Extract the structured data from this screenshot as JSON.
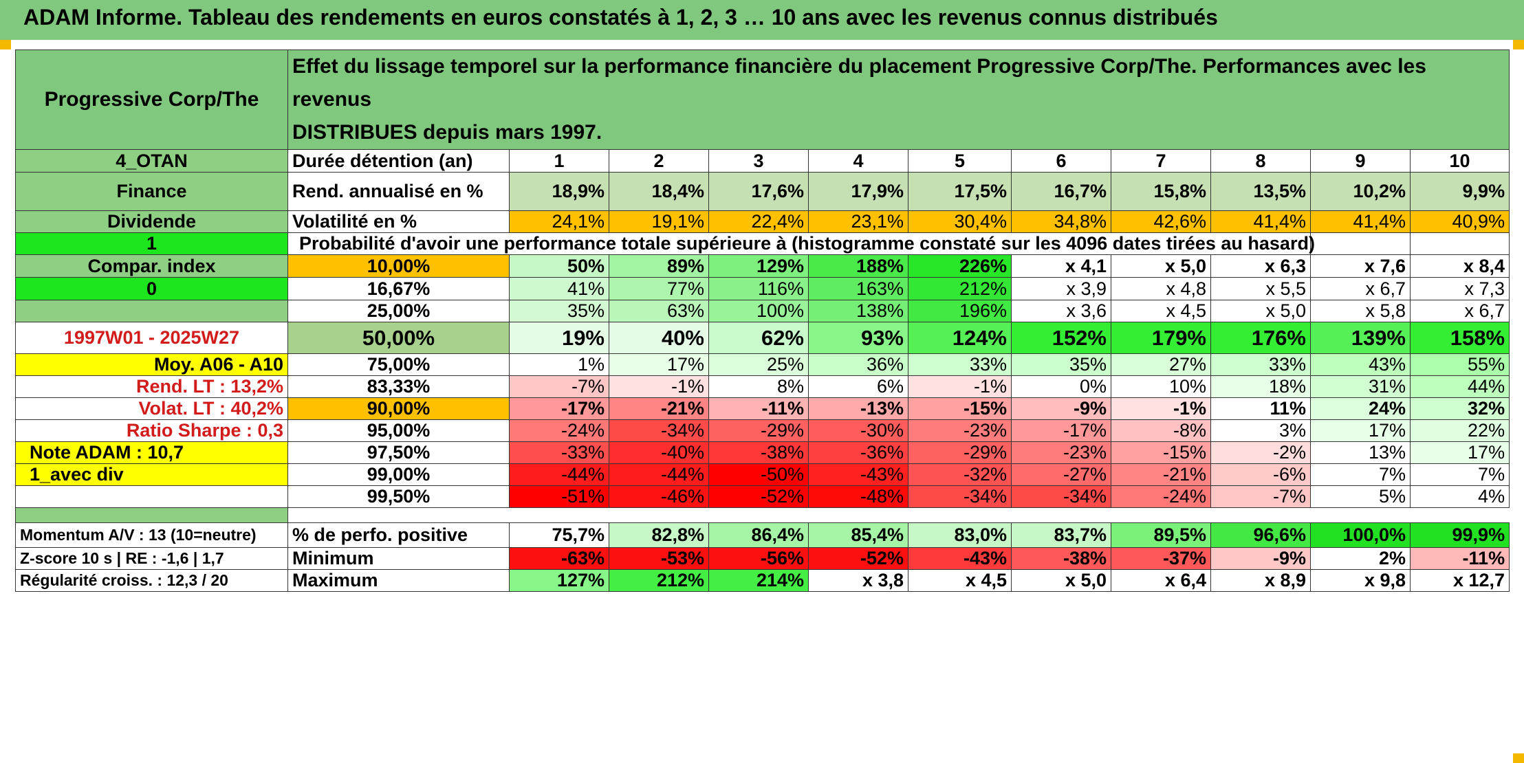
{
  "title": "ADAM Informe. Tableau des rendements en euros constatés à 1, 2, 3 … 10 ans avec les revenus connus distribués",
  "asset_name": "Progressive Corp/The",
  "description_line1": "Effet du lissage temporel sur la performance financière du placement Progressive Corp/The. Performances avec les revenus",
  "description_line2": "DISTRIBUES depuis mars 1997.",
  "left_panel": {
    "code": "4_OTAN",
    "sector": "Finance",
    "dividend": "Dividende",
    "one": "1",
    "compar_index": "Compar. index",
    "zero": "0",
    "period": "1997W01 - 2025W27",
    "moy": "Moy. A06 - A10",
    "rend_lt": "Rend. LT :   13,2%",
    "volat_lt": "Volat. LT :   40,2%",
    "sharpe": "Ratio Sharpe :    0,3",
    "note": "Note ADAM : 10,7",
    "avec_div": "1_avec div",
    "momentum": "Momentum A/V : 13 (10=neutre)",
    "zscore": "Z-score 10 s | RE : -1,6 | 1,7",
    "regularite": "Régularité croiss. : 12,3 / 20"
  },
  "labels": {
    "duree": "Durée détention (an)",
    "rend": "Rend. annualisé en %",
    "volat": "Volatilité en %",
    "proba": "Probabilité d'avoir une performance totale supérieure à (histogramme constaté sur les 4096 dates tirées au hasard)",
    "pct_pos": "% de perfo. positive",
    "minimum": "Minimum",
    "maximum": "Maximum"
  },
  "years": [
    "1",
    "2",
    "3",
    "4",
    "5",
    "6",
    "7",
    "8",
    "9",
    "10"
  ],
  "rend_annualise": [
    "18,9%",
    "18,4%",
    "17,6%",
    "17,9%",
    "17,5%",
    "16,7%",
    "15,8%",
    "13,5%",
    "10,2%",
    "9,9%"
  ],
  "volatilite": [
    "24,1%",
    "19,1%",
    "22,4%",
    "23,1%",
    "30,4%",
    "34,8%",
    "42,6%",
    "41,4%",
    "41,4%",
    "40,9%"
  ],
  "percentile_rows": [
    {
      "pct": "10,00%",
      "values": [
        "50%",
        "89%",
        "129%",
        "188%",
        "226%",
        "x 4,1",
        "x 5,0",
        "x 6,3",
        "x 7,6",
        "x 8,4"
      ]
    },
    {
      "pct": "16,67%",
      "values": [
        "41%",
        "77%",
        "116%",
        "163%",
        "212%",
        "x 3,9",
        "x 4,8",
        "x 5,5",
        "x 6,7",
        "x 7,3"
      ]
    },
    {
      "pct": "25,00%",
      "values": [
        "35%",
        "63%",
        "100%",
        "138%",
        "196%",
        "x 3,6",
        "x 4,5",
        "x 5,0",
        "x 5,8",
        "x 6,7"
      ]
    },
    {
      "pct": "50,00%",
      "values": [
        "19%",
        "40%",
        "62%",
        "93%",
        "124%",
        "152%",
        "179%",
        "176%",
        "139%",
        "158%"
      ]
    },
    {
      "pct": "75,00%",
      "values": [
        "1%",
        "17%",
        "25%",
        "36%",
        "33%",
        "35%",
        "27%",
        "33%",
        "43%",
        "55%"
      ]
    },
    {
      "pct": "83,33%",
      "values": [
        "-7%",
        "-1%",
        "8%",
        "6%",
        "-1%",
        "0%",
        "10%",
        "18%",
        "31%",
        "44%"
      ]
    },
    {
      "pct": "90,00%",
      "values": [
        "-17%",
        "-21%",
        "-11%",
        "-13%",
        "-15%",
        "-9%",
        "-1%",
        "11%",
        "24%",
        "32%"
      ]
    },
    {
      "pct": "95,00%",
      "values": [
        "-24%",
        "-34%",
        "-29%",
        "-30%",
        "-23%",
        "-17%",
        "-8%",
        "3%",
        "17%",
        "22%"
      ]
    },
    {
      "pct": "97,50%",
      "values": [
        "-33%",
        "-40%",
        "-38%",
        "-36%",
        "-29%",
        "-23%",
        "-15%",
        "-2%",
        "13%",
        "17%"
      ]
    },
    {
      "pct": "99,00%",
      "values": [
        "-44%",
        "-44%",
        "-50%",
        "-43%",
        "-32%",
        "-27%",
        "-21%",
        "-6%",
        "7%",
        "7%"
      ]
    },
    {
      "pct": "99,50%",
      "values": [
        "-51%",
        "-46%",
        "-52%",
        "-48%",
        "-34%",
        "-34%",
        "-24%",
        "-7%",
        "5%",
        "4%"
      ]
    }
  ],
  "pct_positive": [
    "75,7%",
    "82,8%",
    "86,4%",
    "85,4%",
    "83,0%",
    "83,7%",
    "89,5%",
    "96,6%",
    "100,0%",
    "99,9%"
  ],
  "minimum": [
    "-63%",
    "-53%",
    "-56%",
    "-52%",
    "-43%",
    "-38%",
    "-37%",
    "-9%",
    "2%",
    "-11%"
  ],
  "maximum": [
    "127%",
    "212%",
    "214%",
    "x 3,8",
    "x 4,5",
    "x 5,0",
    "x 6,4",
    "x 8,9",
    "x 9,8",
    "x 12,7"
  ],
  "colors": {
    "header_green": "#80c87e",
    "label_green": "#8fcf84",
    "bright_green": "#1ee61e",
    "yellow": "#ffff00",
    "orange": "#ffc000",
    "rend_green": "#c6e0b4",
    "median_label": "#a9d18e"
  }
}
